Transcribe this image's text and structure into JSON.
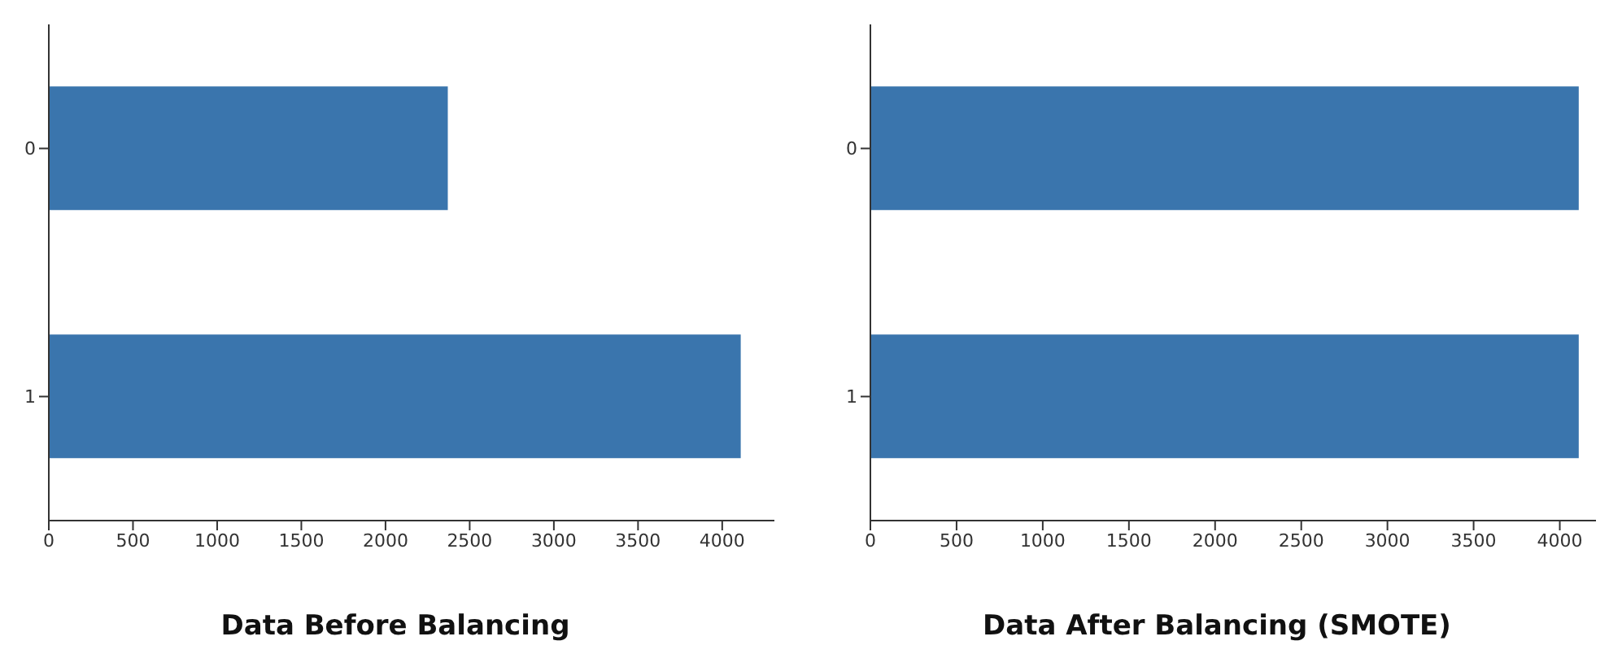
{
  "chart_data": [
    {
      "type": "bar",
      "orientation": "horizontal",
      "title": "Data Before Balancing",
      "categories": [
        "0",
        "1"
      ],
      "values": [
        2370,
        4110
      ],
      "color": "#3a75ad",
      "xlim": [
        0,
        4310
      ],
      "xticks": [
        0,
        500,
        1000,
        1500,
        2000,
        2500,
        3000,
        3500,
        4000
      ],
      "grid": false,
      "legend": false
    },
    {
      "type": "bar",
      "orientation": "horizontal",
      "title": "Data After Balancing (SMOTE)",
      "categories": [
        "0",
        "1"
      ],
      "values": [
        4110,
        4110
      ],
      "color": "#3a75ad",
      "xlim": [
        0,
        4210
      ],
      "xticks": [
        0,
        500,
        1000,
        1500,
        2000,
        2500,
        3000,
        3500,
        4000
      ],
      "grid": false,
      "legend": false
    }
  ]
}
